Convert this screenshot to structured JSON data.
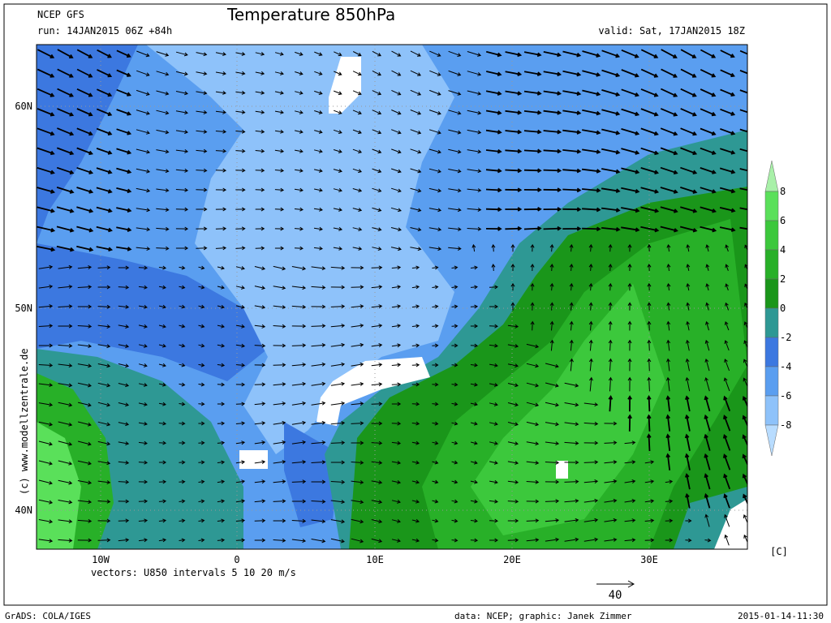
{
  "header": {
    "model": "NCEP GFS",
    "title": "Temperature 850hPa",
    "run": "run: 14JAN2015 06Z +84h",
    "valid": "valid: Sat, 17JAN2015 18Z"
  },
  "map": {
    "lat_labels": [
      "60N",
      "50N",
      "40N"
    ],
    "lon_labels": [
      "10W",
      "0",
      "10E",
      "20E",
      "30E"
    ]
  },
  "colorbar": {
    "unit": "[C]",
    "levels": [
      8,
      6,
      4,
      2,
      0,
      -2,
      -4,
      -6,
      -8
    ],
    "colors": [
      "#a8f0a8",
      "#5ae05a",
      "#3cc83c",
      "#28b028",
      "#1a961a",
      "#2e9894",
      "#3c78e0",
      "#5a9ef0",
      "#8ec2fa",
      "#b8dcff"
    ]
  },
  "footer": {
    "vectors": "vectors: U850 intervals 5 10 20 m/s",
    "scale": "40",
    "grads": "GrADS: COLA/IGES",
    "credit": "data: NCEP; graphic: Janek Zimmer",
    "timestamp": "2015-01-14-11:30",
    "watermark": "(c) www.modellzentrale.de"
  }
}
